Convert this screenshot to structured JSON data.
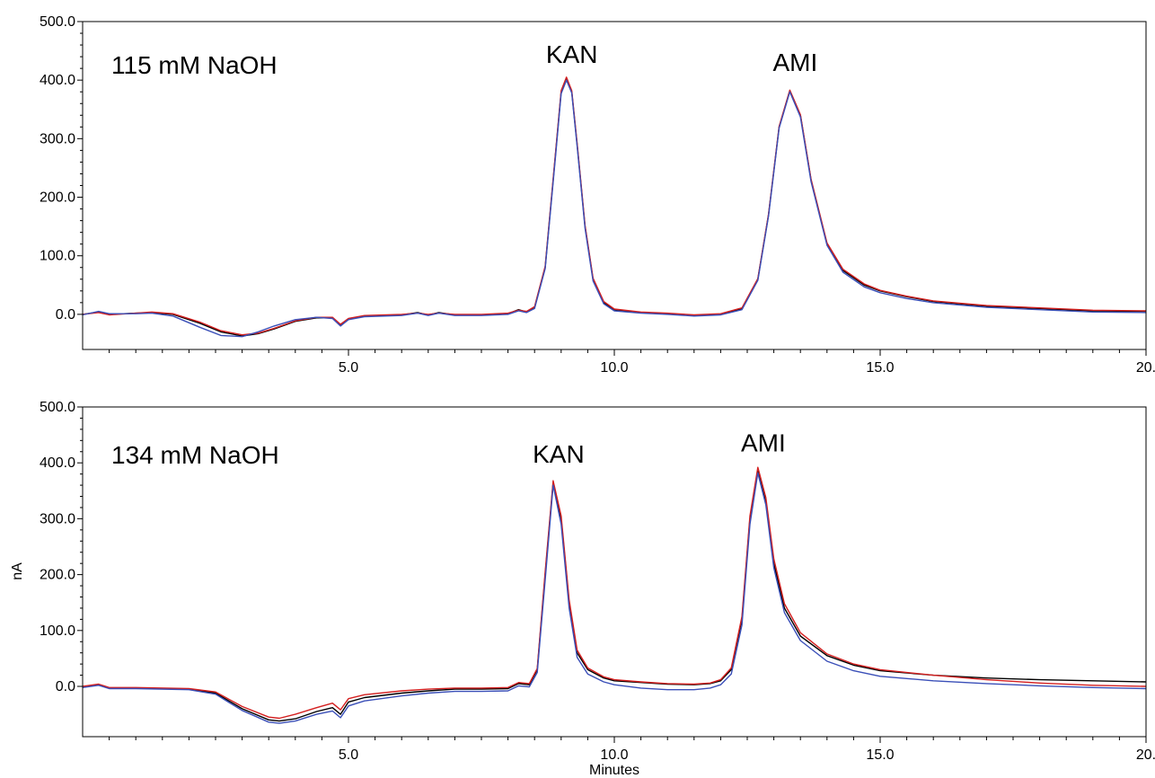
{
  "chart_data": [
    {
      "type": "line",
      "annotations": {
        "condition": "115 mM NaOH",
        "peaks": [
          {
            "label": "KAN",
            "x": 9.1,
            "y": 403
          },
          {
            "label": "AMI",
            "x": 13.3,
            "y": 382
          }
        ]
      },
      "xlim": [
        0,
        20
      ],
      "ylim": [
        -60,
        500
      ],
      "x_ticks": [
        5,
        10,
        15,
        20
      ],
      "x_tick_labels": [
        "5.0",
        "10.0",
        "15.0",
        "20."
      ],
      "y_ticks": [
        0,
        100,
        200,
        300,
        400,
        500
      ],
      "y_tick_labels": [
        "0.0",
        "100.0",
        "200.0",
        "300.0",
        "400.0",
        "500.0"
      ],
      "xlabel": "",
      "ylabel": "",
      "grid": false,
      "series": [
        {
          "color": "#000000",
          "x": [
            0,
            0.3,
            0.5,
            1.0,
            1.3,
            1.7,
            2.2,
            2.6,
            3.0,
            3.3,
            3.6,
            4.0,
            4.4,
            4.7,
            4.85,
            5.0,
            5.3,
            6.0,
            6.3,
            6.5,
            6.7,
            7.0,
            7.5,
            8.0,
            8.2,
            8.35,
            8.5,
            8.7,
            8.9,
            9.0,
            9.1,
            9.2,
            9.3,
            9.45,
            9.6,
            9.8,
            10.0,
            10.5,
            11.0,
            11.5,
            12.0,
            12.4,
            12.7,
            12.9,
            13.1,
            13.3,
            13.5,
            13.7,
            14.0,
            14.3,
            14.7,
            15.0,
            15.5,
            16.0,
            17.0,
            18.0,
            19.0,
            20.0
          ],
          "y": [
            0,
            4,
            0,
            2,
            3,
            0,
            -15,
            -30,
            -37,
            -33,
            -25,
            -12,
            -6,
            -6,
            -19,
            -8,
            -3,
            -1,
            3,
            -1,
            3,
            -1,
            -1,
            1,
            8,
            4,
            12,
            80,
            280,
            380,
            403,
            380,
            290,
            150,
            60,
            20,
            8,
            3,
            1,
            -2,
            0,
            10,
            60,
            170,
            320,
            382,
            340,
            230,
            120,
            75,
            50,
            40,
            30,
            22,
            14,
            10,
            6,
            5
          ]
        },
        {
          "color": "#d42020",
          "x": [
            0,
            0.3,
            0.5,
            1.0,
            1.3,
            1.7,
            2.2,
            2.6,
            3.0,
            3.3,
            3.6,
            4.0,
            4.4,
            4.7,
            4.85,
            5.0,
            5.3,
            6.0,
            6.3,
            6.5,
            6.7,
            7.0,
            7.5,
            8.0,
            8.2,
            8.35,
            8.5,
            8.7,
            8.9,
            9.0,
            9.1,
            9.2,
            9.3,
            9.45,
            9.6,
            9.8,
            10.0,
            10.5,
            11.0,
            11.5,
            12.0,
            12.4,
            12.7,
            12.9,
            13.1,
            13.3,
            13.5,
            13.7,
            14.0,
            14.3,
            14.7,
            15.0,
            15.5,
            16.0,
            17.0,
            18.0,
            19.0,
            20.0
          ],
          "y": [
            0,
            3,
            -1,
            2,
            4,
            1,
            -13,
            -28,
            -35,
            -32,
            -24,
            -11,
            -5,
            -5,
            -17,
            -7,
            -2,
            0,
            2,
            0,
            2,
            0,
            0,
            2,
            7,
            5,
            13,
            82,
            282,
            382,
            405,
            382,
            292,
            152,
            62,
            22,
            9,
            4,
            2,
            -1,
            1,
            11,
            61,
            171,
            321,
            383,
            341,
            231,
            122,
            77,
            52,
            41,
            31,
            23,
            15,
            11,
            7,
            6
          ]
        },
        {
          "color": "#3a4fb8",
          "x": [
            0,
            0.3,
            0.5,
            1.0,
            1.3,
            1.7,
            2.2,
            2.6,
            3.0,
            3.3,
            3.6,
            4.0,
            4.4,
            4.7,
            4.85,
            5.0,
            5.3,
            6.0,
            6.3,
            6.5,
            6.7,
            7.0,
            7.5,
            8.0,
            8.2,
            8.35,
            8.5,
            8.7,
            8.9,
            9.0,
            9.1,
            9.2,
            9.3,
            9.45,
            9.6,
            9.8,
            10.0,
            10.5,
            11.0,
            11.5,
            12.0,
            12.4,
            12.7,
            12.9,
            13.1,
            13.3,
            13.5,
            13.7,
            14.0,
            14.3,
            14.7,
            15.0,
            15.5,
            16.0,
            17.0,
            18.0,
            19.0,
            20.0
          ],
          "y": [
            -1,
            5,
            1,
            1,
            2,
            -3,
            -22,
            -36,
            -38,
            -30,
            -20,
            -9,
            -5,
            -7,
            -20,
            -9,
            -4,
            -2,
            2,
            -2,
            2,
            -2,
            -2,
            0,
            6,
            3,
            10,
            78,
            276,
            377,
            400,
            378,
            287,
            147,
            57,
            18,
            6,
            2,
            0,
            -3,
            -1,
            8,
            58,
            168,
            318,
            380,
            337,
            227,
            118,
            72,
            47,
            37,
            27,
            20,
            12,
            8,
            4,
            3
          ]
        }
      ]
    },
    {
      "type": "line",
      "annotations": {
        "condition": "134 mM NaOH",
        "peaks": [
          {
            "label": "KAN",
            "x": 8.85,
            "y": 365
          },
          {
            "label": "AMI",
            "x": 12.7,
            "y": 385
          }
        ]
      },
      "xlim": [
        0,
        20
      ],
      "ylim": [
        -90,
        500
      ],
      "x_ticks": [
        5,
        10,
        15,
        20
      ],
      "x_tick_labels": [
        "5.0",
        "10.0",
        "15.0",
        "20."
      ],
      "y_ticks": [
        0,
        100,
        200,
        300,
        400,
        500
      ],
      "y_tick_labels": [
        "0.0",
        "100.0",
        "200.0",
        "300.0",
        "400.0",
        "500.0"
      ],
      "xlabel": "Minutes",
      "ylabel": "nA",
      "grid": false,
      "series": [
        {
          "color": "#000000",
          "x": [
            0,
            0.3,
            0.5,
            1.0,
            2.0,
            2.5,
            3.0,
            3.5,
            3.7,
            4.0,
            4.4,
            4.7,
            4.85,
            5.0,
            5.3,
            6.0,
            6.5,
            7.0,
            7.5,
            8.0,
            8.2,
            8.4,
            8.55,
            8.7,
            8.85,
            9.0,
            9.15,
            9.3,
            9.5,
            9.8,
            10.0,
            10.5,
            11.0,
            11.5,
            11.8,
            12.0,
            12.2,
            12.4,
            12.55,
            12.7,
            12.85,
            13.0,
            13.2,
            13.5,
            14.0,
            14.5,
            15.0,
            16.0,
            17.0,
            18.0,
            19.0,
            20.0
          ],
          "y": [
            -1,
            3,
            -3,
            -3,
            -5,
            -12,
            -40,
            -60,
            -62,
            -58,
            -45,
            -38,
            -50,
            -28,
            -20,
            -12,
            -8,
            -5,
            -5,
            -4,
            5,
            3,
            30,
            200,
            365,
            300,
            150,
            60,
            30,
            15,
            10,
            7,
            4,
            3,
            5,
            10,
            30,
            120,
            300,
            385,
            330,
            220,
            140,
            90,
            55,
            38,
            28,
            20,
            15,
            12,
            10,
            8
          ]
        },
        {
          "color": "#d42020",
          "x": [
            0,
            0.3,
            0.5,
            1.0,
            2.0,
            2.5,
            3.0,
            3.5,
            3.7,
            4.0,
            4.4,
            4.7,
            4.85,
            5.0,
            5.3,
            6.0,
            6.5,
            7.0,
            7.5,
            8.0,
            8.2,
            8.4,
            8.55,
            8.7,
            8.85,
            9.0,
            9.15,
            9.3,
            9.5,
            9.8,
            10.0,
            10.5,
            11.0,
            11.5,
            11.8,
            12.0,
            12.2,
            12.4,
            12.55,
            12.7,
            12.85,
            13.0,
            13.2,
            13.5,
            14.0,
            14.5,
            15.0,
            16.0,
            17.0,
            18.0,
            19.0,
            20.0
          ],
          "y": [
            0,
            4,
            -2,
            -2,
            -4,
            -10,
            -36,
            -55,
            -57,
            -50,
            -38,
            -30,
            -42,
            -22,
            -15,
            -8,
            -5,
            -3,
            -3,
            -2,
            7,
            5,
            32,
            205,
            368,
            305,
            155,
            65,
            33,
            17,
            12,
            8,
            5,
            4,
            6,
            12,
            33,
            125,
            305,
            392,
            338,
            228,
            148,
            96,
            58,
            40,
            30,
            20,
            12,
            6,
            2,
            0
          ]
        },
        {
          "color": "#3a4fb8",
          "x": [
            0,
            0.3,
            0.5,
            1.0,
            2.0,
            2.5,
            3.0,
            3.5,
            3.7,
            4.0,
            4.4,
            4.7,
            4.85,
            5.0,
            5.3,
            6.0,
            6.5,
            7.0,
            7.5,
            8.0,
            8.2,
            8.4,
            8.55,
            8.7,
            8.85,
            9.0,
            9.15,
            9.3,
            9.5,
            9.8,
            10.0,
            10.5,
            11.0,
            11.5,
            11.8,
            12.0,
            12.2,
            12.4,
            12.55,
            12.7,
            12.85,
            13.0,
            13.2,
            13.5,
            14.0,
            14.5,
            15.0,
            16.0,
            17.0,
            18.0,
            19.0,
            20.0
          ],
          "y": [
            -2,
            2,
            -4,
            -4,
            -6,
            -14,
            -43,
            -64,
            -66,
            -62,
            -50,
            -44,
            -56,
            -35,
            -26,
            -17,
            -12,
            -9,
            -9,
            -8,
            1,
            -1,
            25,
            190,
            360,
            290,
            140,
            52,
            22,
            8,
            3,
            -3,
            -6,
            -6,
            -3,
            3,
            22,
            110,
            290,
            382,
            325,
            212,
            132,
            82,
            45,
            28,
            18,
            10,
            5,
            1,
            -2,
            -4
          ]
        }
      ]
    }
  ]
}
